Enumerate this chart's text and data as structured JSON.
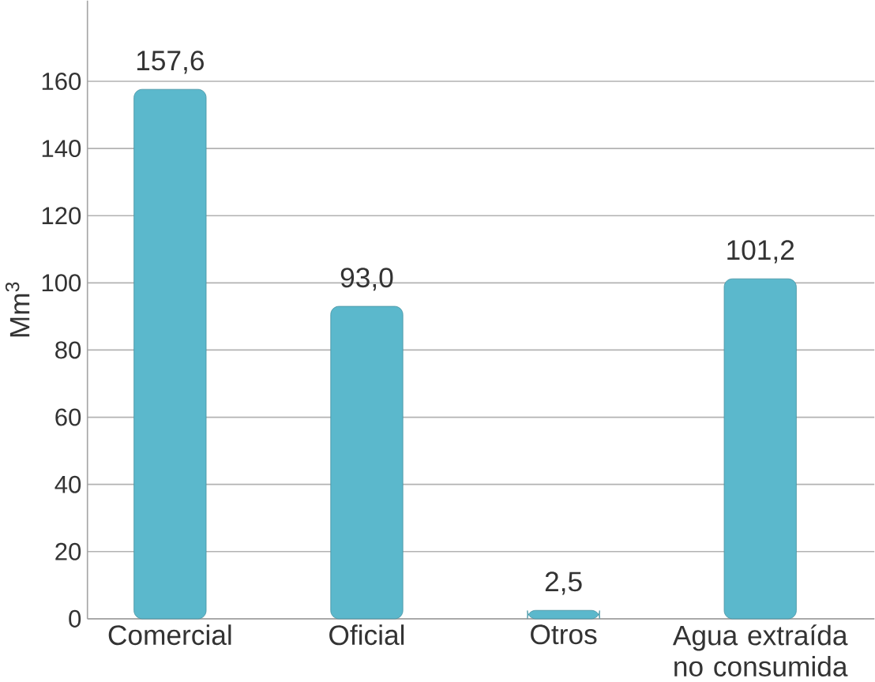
{
  "chart_data": {
    "type": "bar",
    "ylabel": "Mm$^{3}$",
    "categories": [
      "Comercial",
      "Oficial",
      "Otros",
      "Agua extraída no consumida"
    ],
    "values": [
      157.6,
      93.0,
      2.5,
      101.2
    ],
    "value_labels": [
      "157,6",
      "93,0",
      "2,5",
      "101,2"
    ],
    "color": "#5bb8cc",
    "ylim": [
      0,
      184
    ],
    "yticks": [
      0,
      20,
      40,
      60,
      80,
      100,
      120,
      140,
      160
    ],
    "grid": "y"
  }
}
